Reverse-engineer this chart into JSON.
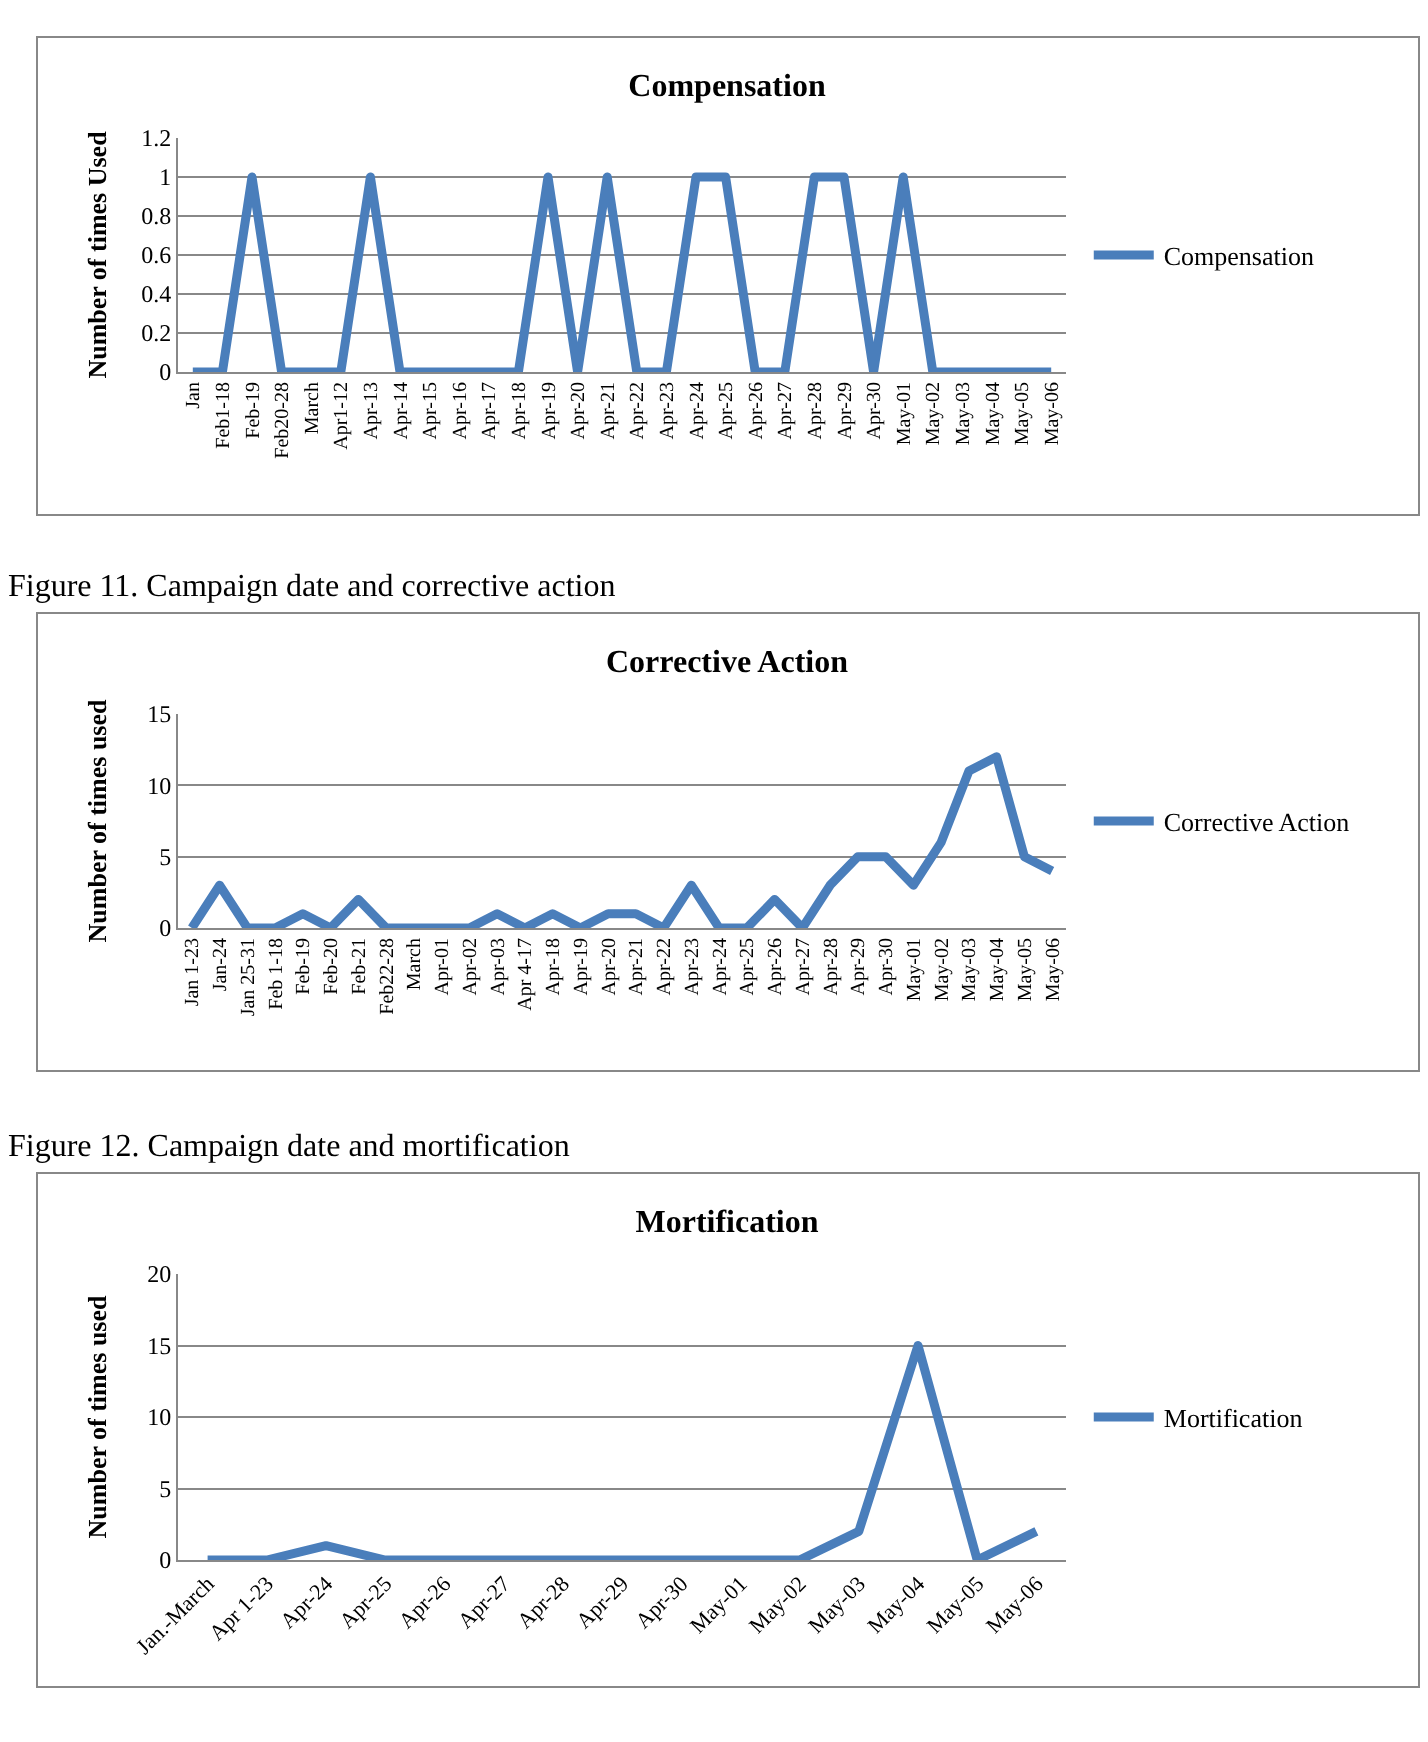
{
  "chart_data": [
    {
      "type": "line",
      "title": "Compensation",
      "ylabel": "Number of times Used",
      "categories": [
        "Jan",
        "Feb1-18",
        "Feb-19",
        "Feb20-28",
        "March",
        "Apr1-12",
        "Apr-13",
        "Apr-14",
        "Apr-15",
        "Apr-16",
        "Apr-17",
        "Apr-18",
        "Apr-19",
        "Apr-20",
        "Apr-21",
        "Apr-22",
        "Apr-23",
        "Apr-24",
        "Apr-25",
        "Apr-26",
        "Apr-27",
        "Apr-28",
        "Apr-29",
        "Apr-30",
        "May-01",
        "May-02",
        "May-03",
        "May-04",
        "May-05",
        "May-06"
      ],
      "series": [
        {
          "name": "Compensation",
          "color": "#4a7ebb",
          "values": [
            0,
            0,
            1,
            0,
            0,
            0,
            1,
            0,
            0,
            0,
            0,
            0,
            1,
            0,
            1,
            0,
            0,
            1,
            1,
            0,
            0,
            1,
            1,
            0,
            1,
            0,
            0,
            0,
            0,
            0
          ]
        }
      ],
      "ylim": [
        0,
        1.2
      ],
      "yticks": [
        0,
        0.2,
        0.4,
        0.6,
        0.8,
        1,
        1.2
      ],
      "grid": "y",
      "legend": "right"
    },
    {
      "type": "line",
      "title": "Corrective Action",
      "ylabel": "Number of times used",
      "annotations": [
        "Figure 11. Campaign date and corrective action"
      ],
      "categories": [
        "Jan 1-23",
        "Jan-24",
        "Jan 25-31",
        "Feb 1-18",
        "Feb-19",
        "Feb-20",
        "Feb-21",
        "Feb22-28",
        "March",
        "Apr-01",
        "Apr-02",
        "Apr-03",
        "Apr 4-17",
        "Apr-18",
        "Apr-19",
        "Apr-20",
        "Apr-21",
        "Apr-22",
        "Apr-23",
        "Apr-24",
        "Apr-25",
        "Apr-26",
        "Apr-27",
        "Apr-28",
        "Apr-29",
        "Apr-30",
        "May-01",
        "May-02",
        "May-03",
        "May-04",
        "May-05",
        "May-06"
      ],
      "series": [
        {
          "name": "Corrective Action",
          "color": "#4a7ebb",
          "values": [
            0,
            3,
            0,
            0,
            1,
            0,
            2,
            0,
            0,
            0,
            0,
            1,
            0,
            1,
            0,
            1,
            1,
            0,
            3,
            0,
            0,
            2,
            0,
            3,
            5,
            5,
            3,
            6,
            11,
            12,
            5,
            4
          ]
        }
      ],
      "ylim": [
        0,
        15
      ],
      "yticks": [
        0,
        5,
        10,
        15
      ],
      "grid": "y",
      "legend": "right"
    },
    {
      "type": "line",
      "title": "Mortification",
      "ylabel": "Number of times used",
      "annotations": [
        "Figure 12. Campaign date and mortification"
      ],
      "categories": [
        "Jan.-March",
        "Apr 1-23",
        "Apr-24",
        "Apr-25",
        "Apr-26",
        "Apr-27",
        "Apr-28",
        "Apr-29",
        "Apr-30",
        "May-01",
        "May-02",
        "May-03",
        "May-04",
        "May-05",
        "May-06"
      ],
      "series": [
        {
          "name": "Mortification",
          "color": "#4a7ebb",
          "values": [
            0,
            0,
            1,
            0,
            0,
            0,
            0,
            0,
            0,
            0,
            0,
            2,
            15,
            0,
            2
          ]
        }
      ],
      "ylim": [
        0,
        20
      ],
      "yticks": [
        0,
        5,
        10,
        15,
        20
      ],
      "grid": "y",
      "legend": "right"
    }
  ]
}
